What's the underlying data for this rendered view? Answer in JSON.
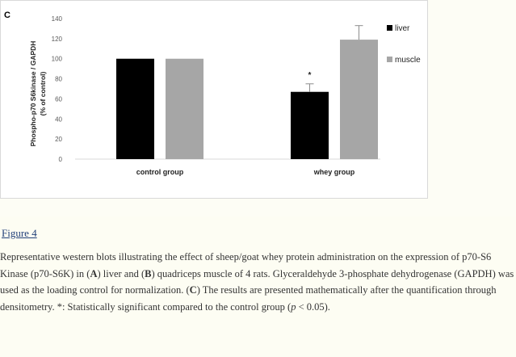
{
  "figure": {
    "panel_label": "C",
    "link_text": "Figure 4"
  },
  "caption": {
    "p1": "Representative western blots illustrating the effect of sheep/goat whey protein administration on the expression of p70-S6 Kinase (p70-S6K) in (",
    "b1": "A",
    "p2": ") liver and (",
    "b2": "B",
    "p3": ") quadriceps muscle of 4 rats. Glyceraldehyde 3-phosphate dehydrogenase (GAPDH) was used as the loading control for normalization. (",
    "b3": "C",
    "p4": ") The results are presented mathematically after the quantification through densitometry. *: Statistically significant compared to the control group (",
    "pval_italic": "p",
    "p5": " < 0.05)."
  },
  "chart_data": {
    "type": "bar",
    "title": "",
    "ylabel": "Phospho-p70 S6kinase / GAPDH\n(% of control)",
    "xlabel": "",
    "ylim": [
      0,
      140
    ],
    "yticks": [
      0,
      20,
      40,
      60,
      80,
      100,
      120,
      140
    ],
    "categories": [
      "control group",
      "whey group"
    ],
    "series": [
      {
        "name": "liver",
        "color": "#000000",
        "values": [
          100,
          67
        ],
        "errors": [
          0,
          8
        ]
      },
      {
        "name": "muscle",
        "color": "#a6a6a6",
        "values": [
          100,
          119
        ],
        "errors": [
          0,
          14
        ]
      }
    ],
    "annotations": [
      {
        "category": "whey group",
        "series": "liver",
        "text": "*"
      }
    ],
    "legend": "top-right",
    "grid": false
  }
}
